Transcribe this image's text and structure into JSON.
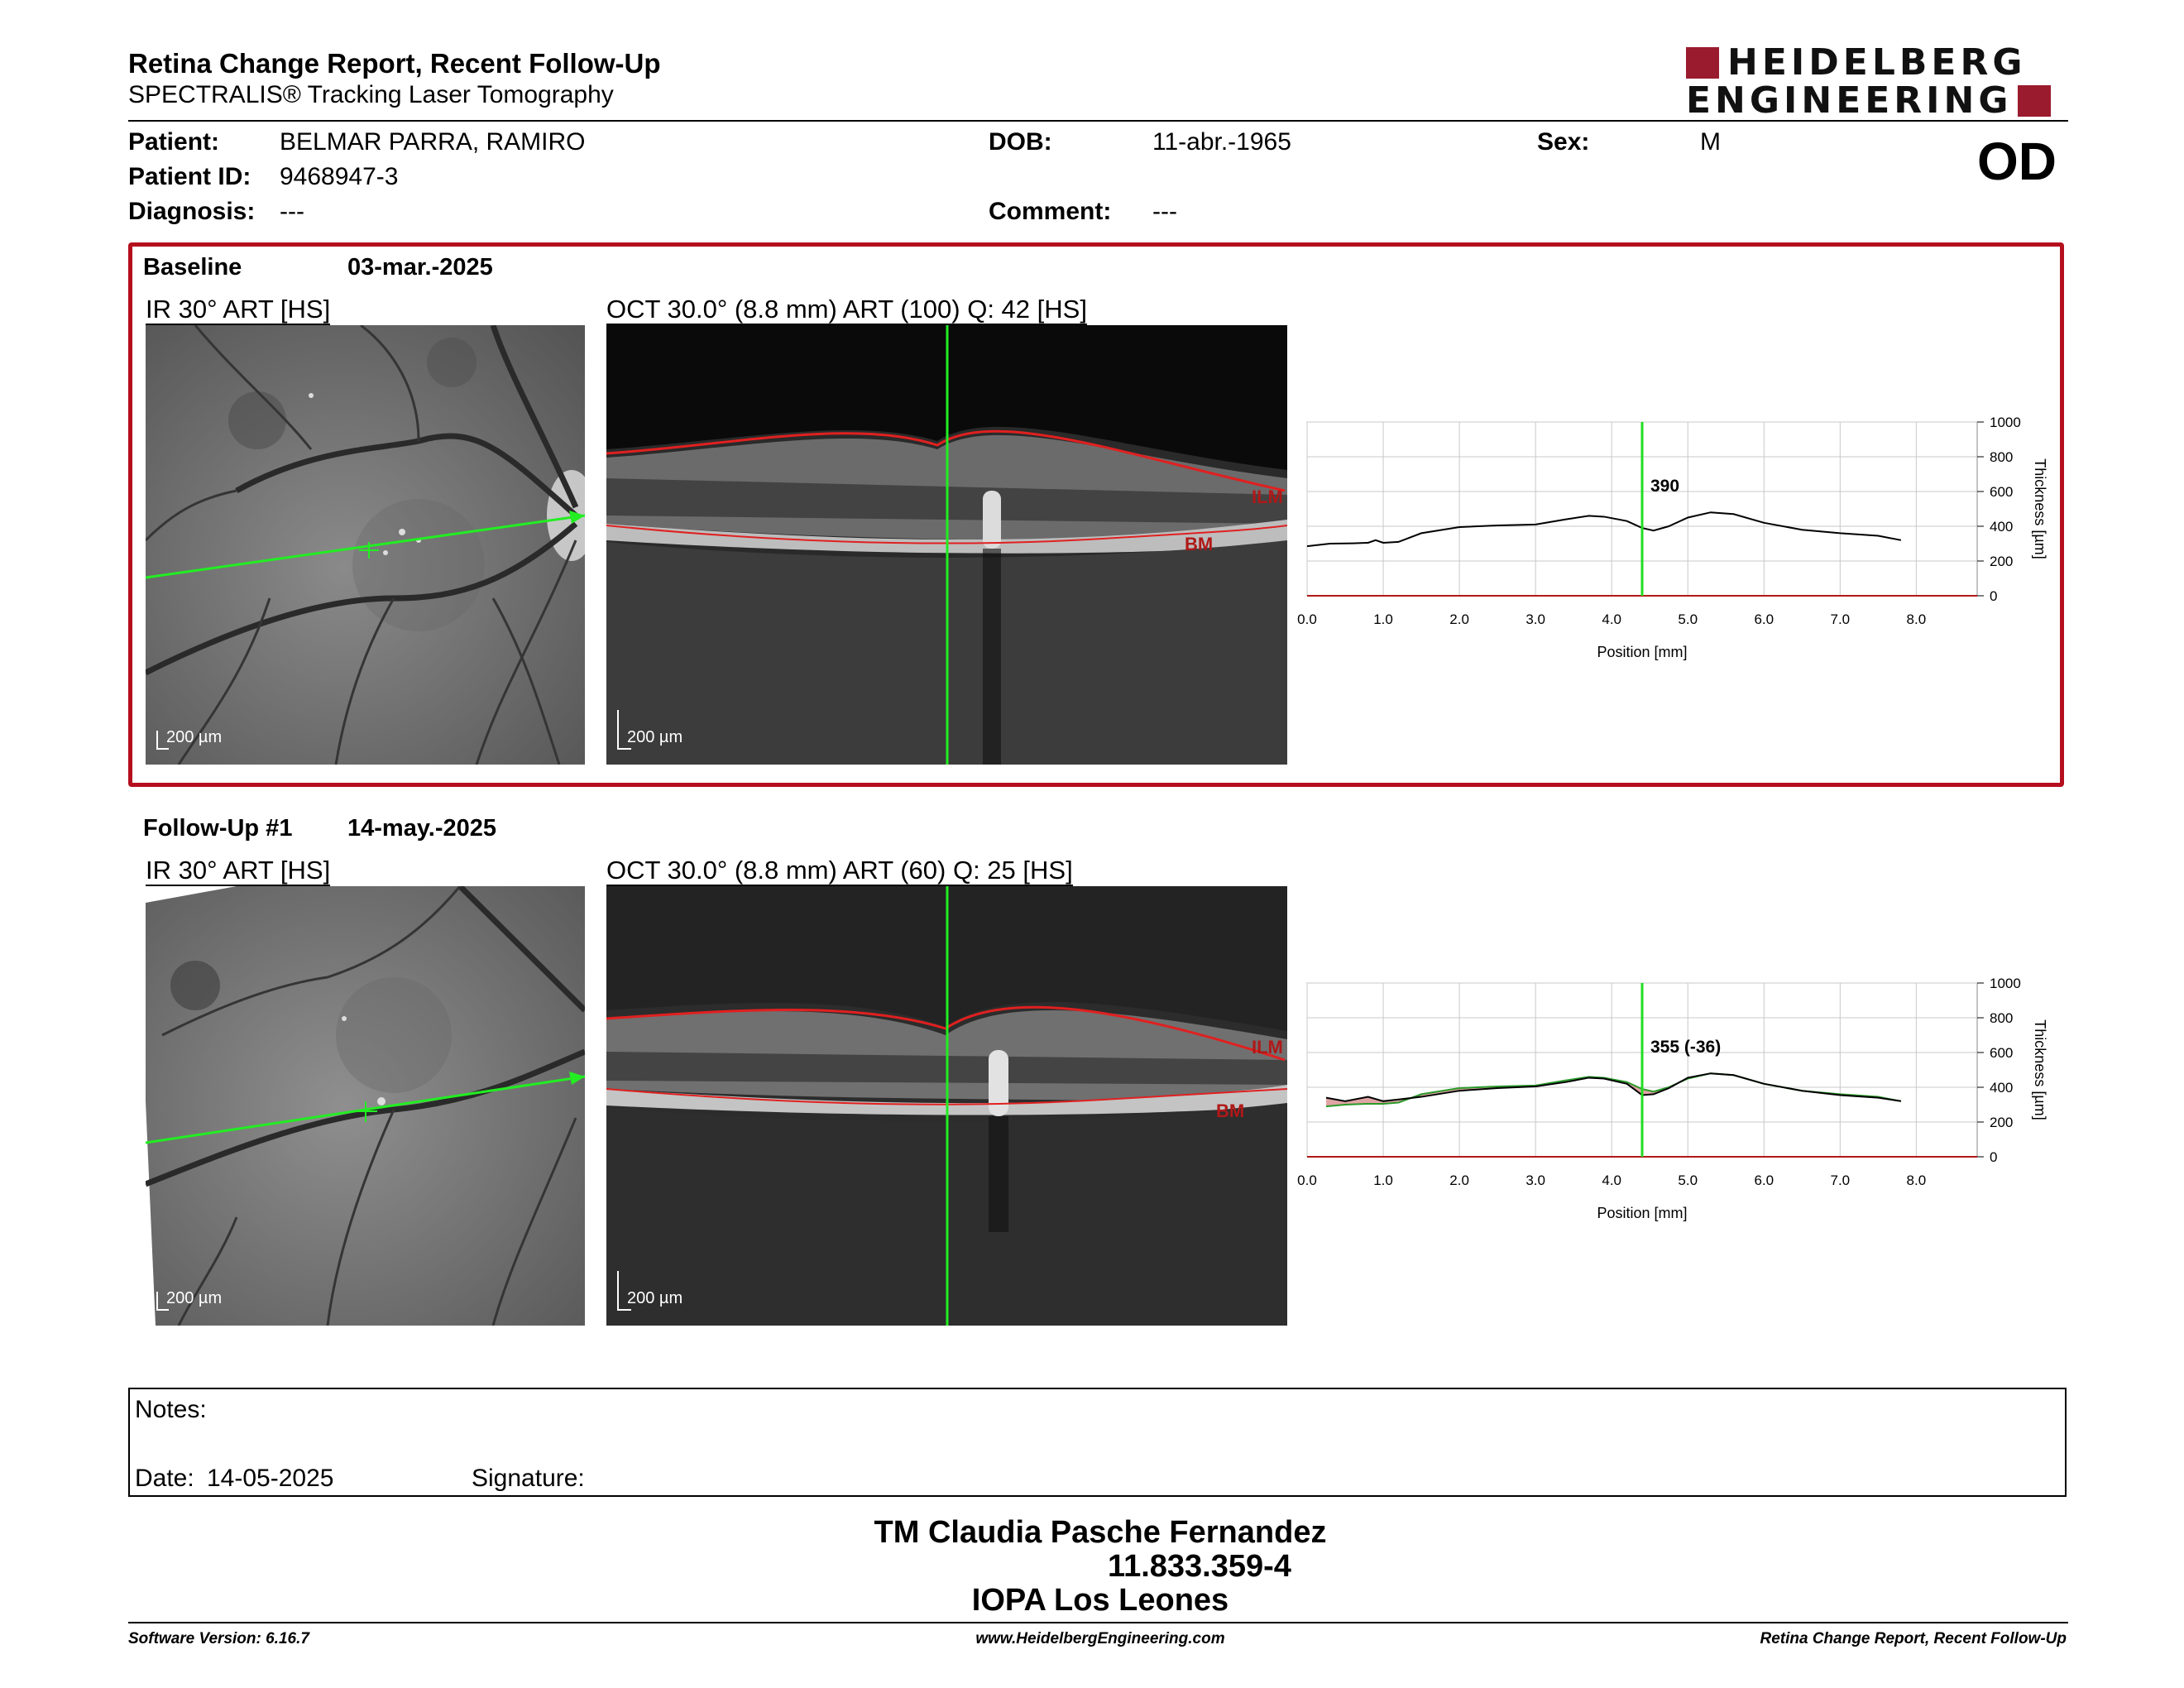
{
  "header": {
    "title": "Retina Change Report, Recent Follow-Up",
    "subtitle": "SPECTRALIS® Tracking Laser Tomography",
    "logo_line1": "HEIDELBERG",
    "logo_line2": "ENGINEERING",
    "eye": "OD"
  },
  "patient": {
    "name_label": "Patient:",
    "name": "BELMAR PARRA, RAMIRO",
    "id_label": "Patient ID:",
    "id": "9468947-3",
    "diag_label": "Diagnosis:",
    "diag": "---",
    "dob_label": "DOB:",
    "dob": "11-abr.-1965",
    "comment_label": "Comment:",
    "comment": "---",
    "sex_label": "Sex:",
    "sex": "M"
  },
  "baseline": {
    "label": "Baseline",
    "date": "03-mar.-2025",
    "ir_title": "IR 30° ART [HS]",
    "oct_title": "OCT 30.0° (8.8 mm) ART (100) Q: 42 [HS]",
    "scale_ir": "200 µm",
    "scale_oct": "200 µm",
    "ilm": "ILM",
    "bm": "BM",
    "cursor_value": "390"
  },
  "followup": {
    "label": "Follow-Up #1",
    "date": "14-may.-2025",
    "ir_title": "IR 30° ART [HS]",
    "oct_title": "OCT 30.0° (8.8 mm) ART (60) Q: 25 [HS]",
    "scale_ir": "200 µm",
    "scale_oct": "200 µm",
    "ilm": "ILM",
    "bm": "BM",
    "cursor_value": "355 (-36)"
  },
  "chart_data": [
    {
      "type": "line",
      "xlabel": "Position [mm]",
      "ylabel": "Thickness [µm]",
      "xlim": [
        0,
        8.8
      ],
      "ylim": [
        0,
        1000
      ],
      "xticks": [
        "0.0",
        "1.0",
        "2.0",
        "3.0",
        "4.0",
        "5.0",
        "6.0",
        "7.0",
        "8.0"
      ],
      "yticks": [
        "0",
        "200",
        "400",
        "600",
        "800",
        "1000"
      ],
      "cursor_x": 4.4,
      "series": [
        {
          "x": [
            0.0,
            0.3,
            0.6,
            0.8,
            0.9,
            1.0,
            1.2,
            1.5,
            2.0,
            2.5,
            3.0,
            3.4,
            3.7,
            3.9,
            4.2,
            4.4,
            4.55,
            4.75,
            5.0,
            5.3,
            5.6,
            6.0,
            6.5,
            7.0,
            7.5,
            7.8
          ],
          "y": [
            285,
            300,
            302,
            305,
            320,
            305,
            310,
            360,
            395,
            405,
            410,
            440,
            460,
            455,
            430,
            390,
            375,
            400,
            450,
            480,
            470,
            420,
            380,
            360,
            345,
            320
          ]
        }
      ]
    },
    {
      "type": "line",
      "xlabel": "Position [mm]",
      "ylabel": "Thickness [µm]",
      "xlim": [
        0,
        8.8
      ],
      "ylim": [
        0,
        1000
      ],
      "xticks": [
        "0.0",
        "1.0",
        "2.0",
        "3.0",
        "4.0",
        "5.0",
        "6.0",
        "7.0",
        "8.0"
      ],
      "yticks": [
        "0",
        "200",
        "400",
        "600",
        "800",
        "1000"
      ],
      "cursor_x": 4.4,
      "series": [
        {
          "x": [
            0.25,
            0.5,
            0.8,
            1.0,
            1.2,
            1.5,
            2.0,
            2.5,
            3.0,
            3.4,
            3.7,
            3.9,
            4.2,
            4.4,
            4.55,
            4.75,
            5.0,
            5.3,
            5.6,
            6.0,
            6.5,
            7.0,
            7.5,
            7.8
          ],
          "y": [
            340,
            320,
            345,
            320,
            330,
            345,
            380,
            395,
            405,
            430,
            455,
            450,
            420,
            355,
            360,
            395,
            455,
            480,
            470,
            420,
            380,
            355,
            340,
            320
          ]
        },
        {
          "x": [
            0.25,
            0.5,
            0.8,
            1.0,
            1.2,
            1.5,
            2.0,
            2.5,
            3.0,
            3.4,
            3.7,
            3.9,
            4.2,
            4.4,
            4.55,
            4.75,
            5.0,
            5.3,
            5.6,
            6.0,
            6.5,
            7.0,
            7.5,
            7.8
          ],
          "y": [
            290,
            300,
            305,
            305,
            312,
            360,
            395,
            405,
            410,
            440,
            460,
            455,
            430,
            390,
            375,
            400,
            450,
            480,
            470,
            420,
            380,
            360,
            345,
            320
          ]
        }
      ]
    }
  ],
  "notes": {
    "label": "Notes:",
    "date_label": "Date:",
    "date": "14-05-2025",
    "signature_label": "Signature:"
  },
  "operator": {
    "name": "TM Claudia Pasche Fernandez",
    "id": "11.833.359-4",
    "place": "IOPA Los Leones"
  },
  "footer": {
    "software": "Software Version: 6.16.7",
    "url": "www.HeidelbergEngineering.com",
    "report": "Retina Change Report, Recent Follow-Up"
  },
  "colors": {
    "accent_red": "#b50f1e",
    "logo_red": "#9b1b2e",
    "cursor_green": "#22dd22"
  }
}
